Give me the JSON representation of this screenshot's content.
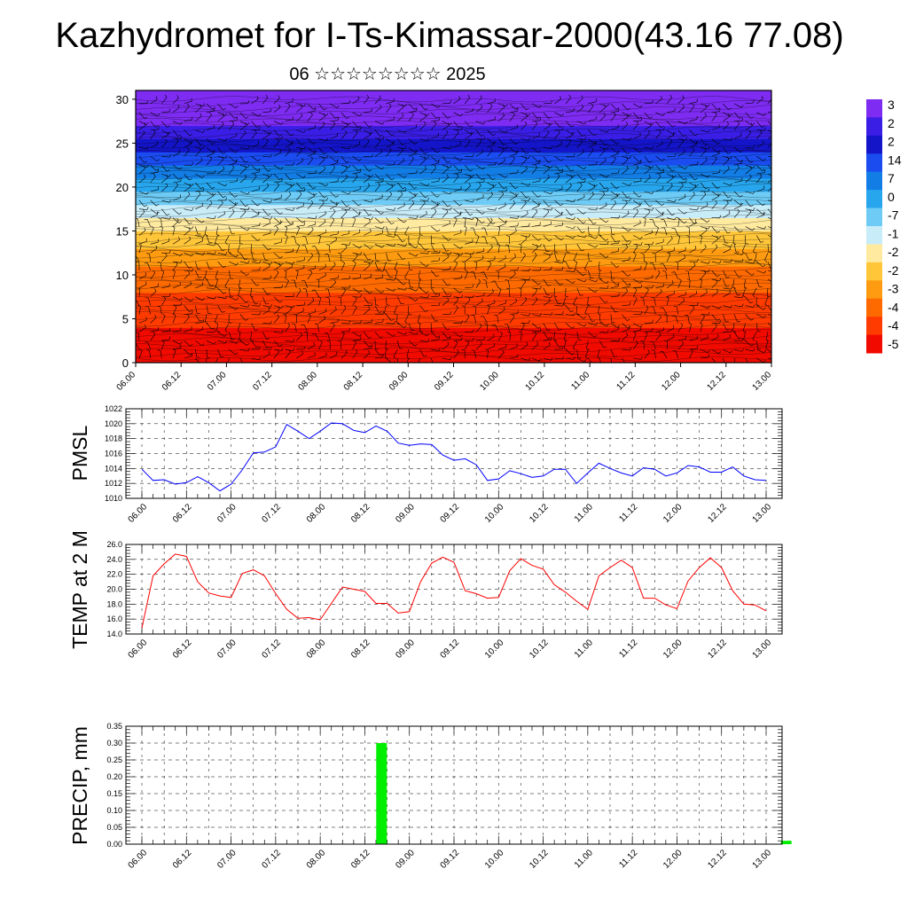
{
  "page": {
    "title": "Kazhydromet for I-Ts-Kimassar-2000(43.16 77.08)",
    "subtitle": "06 ☆☆☆☆☆☆☆☆ 2025"
  },
  "chart_data": [
    {
      "type": "heatmap",
      "id": "cross-section",
      "x_tick_labels": [
        "06.00",
        "06.12",
        "07.00",
        "07.12",
        "08.00",
        "08.12",
        "09.00",
        "09.12",
        "10.00",
        "10.12",
        "11.00",
        "11.12",
        "12.00",
        "12.12",
        "13.00"
      ],
      "ylim": [
        0,
        31
      ],
      "yticks": [
        0,
        5,
        10,
        15,
        20,
        25,
        30
      ],
      "colorbar_labels": [
        "3",
        "2",
        "2",
        "14",
        "7",
        "0",
        "-7",
        "-1",
        "-2",
        "-2",
        "-3",
        "-4",
        "-4",
        "-5"
      ],
      "color_bands": [
        {
          "from": 0,
          "to": 4,
          "color": "#f00a00"
        },
        {
          "from": 4,
          "to": 8,
          "color": "#ff3b00"
        },
        {
          "from": 8,
          "to": 11,
          "color": "#ff6a00"
        },
        {
          "from": 11,
          "to": 13,
          "color": "#ff9b10"
        },
        {
          "from": 13,
          "to": 15,
          "color": "#ffc63a"
        },
        {
          "from": 15,
          "to": 16.5,
          "color": "#ffeaa0"
        },
        {
          "from": 16.5,
          "to": 18,
          "color": "#c8ecf8"
        },
        {
          "from": 18,
          "to": 19.5,
          "color": "#6ecbf5"
        },
        {
          "from": 19.5,
          "to": 21,
          "color": "#27a6ee"
        },
        {
          "from": 21,
          "to": 22.5,
          "color": "#137de6"
        },
        {
          "from": 22.5,
          "to": 24,
          "color": "#1a4cf0"
        },
        {
          "from": 24,
          "to": 25.5,
          "color": "#1414c8"
        },
        {
          "from": 25.5,
          "to": 27,
          "color": "#3a1ee6"
        },
        {
          "from": 27,
          "to": 31,
          "color": "#7e2bf2"
        }
      ]
    },
    {
      "type": "line",
      "id": "pmsl",
      "ylabel": "PMSL",
      "ylim": [
        1010,
        1022
      ],
      "yticks": [
        1010,
        1012,
        1014,
        1016,
        1018,
        1020,
        1022
      ],
      "ytick_labels": [
        "1010",
        "1012",
        "1014",
        "1016",
        "1018",
        "1020",
        "1022"
      ],
      "x_tick_labels": [
        "06.00",
        "06.12",
        "07.00",
        "07.12",
        "08.00",
        "08.12",
        "09.00",
        "09.12",
        "10.00",
        "10.12",
        "11.00",
        "11.12",
        "12.00",
        "12.12",
        "13.00"
      ],
      "color": "#0000ff",
      "series": [
        {
          "values": [
            1013.9,
            1012.4,
            1012.5,
            1011.9,
            1012.1,
            1012.9,
            1012.1,
            1011.0,
            1011.9,
            1013.8,
            1016.1,
            1016.2,
            1016.9,
            1019.9,
            1019.0,
            1018.0,
            1019.0,
            1020.1,
            1020.0,
            1019.1,
            1018.8,
            1019.7,
            1019.0,
            1017.4,
            1017.1,
            1017.3,
            1017.2,
            1015.8,
            1015.1,
            1015.3,
            1014.5,
            1012.4,
            1012.6,
            1013.7,
            1013.3,
            1012.8,
            1013.0,
            1013.9,
            1013.9,
            1012.0,
            1013.4,
            1014.7,
            1014.0,
            1013.4,
            1013.0,
            1014.1,
            1013.9,
            1013.0,
            1013.4,
            1014.4,
            1014.2,
            1013.5,
            1013.5,
            1014.2,
            1013.0,
            1012.5,
            1012.4
          ]
        }
      ]
    },
    {
      "type": "line",
      "id": "temp",
      "ylabel": "TEMP at 2 M",
      "ylim": [
        14,
        26
      ],
      "yticks": [
        14,
        16,
        18,
        20,
        22,
        24,
        26
      ],
      "ytick_labels": [
        "14.0",
        "16.0",
        "18.0",
        "20.0",
        "22.0",
        "24.0",
        "26.0"
      ],
      "x_tick_labels": [
        "06.00",
        "06.12",
        "07.00",
        "07.12",
        "08.00",
        "08.12",
        "09.00",
        "09.12",
        "10.00",
        "10.12",
        "11.00",
        "11.12",
        "12.00",
        "12.12",
        "13.00"
      ],
      "color": "#ff0000",
      "series": [
        {
          "values": [
            14.8,
            21.8,
            23.4,
            24.7,
            24.4,
            21.0,
            19.5,
            19.1,
            18.9,
            22.1,
            22.6,
            21.8,
            19.4,
            17.3,
            16.1,
            16.2,
            15.9,
            18.1,
            20.3,
            20.0,
            19.7,
            18.1,
            18.1,
            16.8,
            17.0,
            21.0,
            23.5,
            24.3,
            23.6,
            19.8,
            19.4,
            18.8,
            18.9,
            22.5,
            24.1,
            23.2,
            22.7,
            20.6,
            19.6,
            18.4,
            17.3,
            21.8,
            22.9,
            23.9,
            22.9,
            18.8,
            18.8,
            17.9,
            17.4,
            21.1,
            22.9,
            24.2,
            22.9,
            19.8,
            18.0,
            17.9,
            17.1
          ]
        }
      ]
    },
    {
      "type": "bar",
      "id": "precip",
      "ylabel": "PRECIP, mm",
      "ylim": [
        0,
        0.35
      ],
      "yticks": [
        0,
        0.05,
        0.1,
        0.15,
        0.2,
        0.25,
        0.3,
        0.35
      ],
      "ytick_labels": [
        "0.00",
        "0.05",
        "0.10",
        "0.15",
        "0.20",
        "0.25",
        "0.30",
        "0.35"
      ],
      "x_tick_labels": [
        "06.00",
        "06.12",
        "07.00",
        "07.12",
        "08.00",
        "08.12",
        "09.00",
        "09.12",
        "10.00",
        "10.12",
        "11.00",
        "11.12",
        "12.00",
        "12.12",
        "13.00"
      ],
      "color": "#00ee00",
      "bars": [
        {
          "x": 21.5,
          "value": 0.3
        },
        {
          "x": 57.8,
          "value": 0.01
        }
      ]
    }
  ]
}
